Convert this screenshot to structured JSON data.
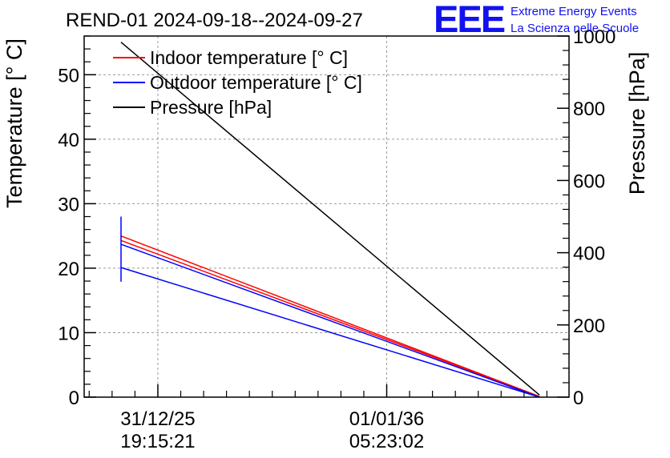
{
  "title": "REND-01 2024-09-18--2024-09-27",
  "logo": {
    "mark": "EEE",
    "line1": "Extreme Energy Events",
    "line2": "La Scienza nelle Scuole",
    "color": "#1212ee"
  },
  "chart_data": {
    "type": "line",
    "title": "REND-01 2024-09-18--2024-09-27",
    "xlabel": "",
    "ylabel": "Temperature [° C]",
    "y2label": "Pressure [hPa]",
    "ylim": [
      0,
      56
    ],
    "y2lim": [
      0,
      1000
    ],
    "yticks": [
      0,
      10,
      20,
      30,
      40,
      50
    ],
    "y2ticks": [
      0,
      200,
      400,
      600,
      800,
      1000
    ],
    "xrange": [
      0,
      1
    ],
    "xticks": [
      {
        "pos": 0.152,
        "date": "31/12/25",
        "time": "19:15:21"
      },
      {
        "pos": 0.624,
        "date": "01/01/36",
        "time": "05:23:02"
      }
    ],
    "grid": true,
    "legend_position": "top-left",
    "series": [
      {
        "name": "Indoor temperature [° C]",
        "color": "#ff0000",
        "axis": "left",
        "points": [
          [
            0.076,
            25.0
          ],
          [
            0.939,
            0.1
          ]
        ]
      },
      {
        "name": "Indoor temperature [° C]",
        "color": "#ff0000",
        "axis": "left",
        "points": [
          [
            0.076,
            24.3
          ],
          [
            0.939,
            0.1
          ]
        ],
        "in_legend": false
      },
      {
        "name": "Outdoor temperature [° C]",
        "color": "#0000ff",
        "axis": "left",
        "points": [
          [
            0.076,
            23.7
          ],
          [
            0.939,
            0.0
          ]
        ]
      },
      {
        "name": "Outdoor temperature [° C]",
        "color": "#0000ff",
        "axis": "left",
        "points": [
          [
            0.076,
            20.1
          ],
          [
            0.939,
            0.0
          ]
        ],
        "in_legend": false
      },
      {
        "name": "Outdoor temperature [° C]",
        "color": "#0000ff",
        "axis": "left",
        "points": [
          [
            0.076,
            28.0
          ],
          [
            0.076,
            17.9
          ]
        ],
        "in_legend": false
      },
      {
        "name": "Pressure [hPa]",
        "color": "#000000",
        "axis": "right",
        "points": [
          [
            0.076,
            983
          ],
          [
            0.939,
            6
          ]
        ]
      }
    ],
    "legend": [
      {
        "label": "Indoor temperature [° C]",
        "color": "#ff0000"
      },
      {
        "label": "Outdoor temperature [° C]",
        "color": "#0000ff"
      },
      {
        "label": "Pressure [hPa]",
        "color": "#000000"
      }
    ]
  }
}
